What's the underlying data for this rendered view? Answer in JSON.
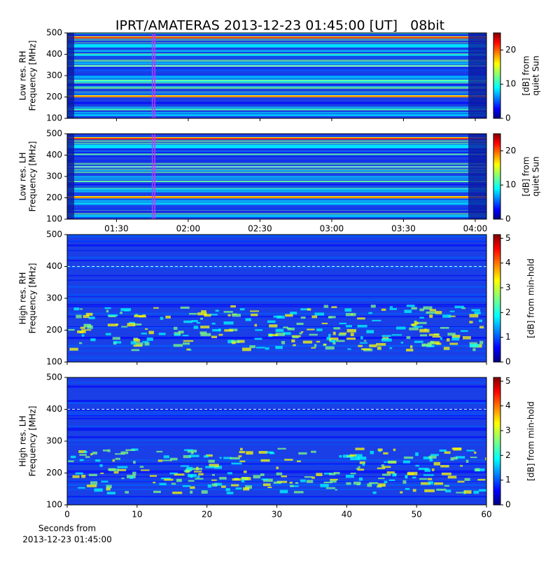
{
  "title": "IPRT/AMATERAS 2013-12-23 01:45:00 [UT]   08bit",
  "chart_data": [
    {
      "type": "spectrogram",
      "ylabel": [
        "Low res. RH",
        "Frequency [MHz]"
      ],
      "ylim": [
        100,
        500
      ],
      "yticks": [
        100,
        200,
        300,
        400,
        500
      ],
      "xlim": [
        69.4,
        244.7
      ],
      "highlight": [
        105,
        106
      ],
      "highlight_color": "#cc33ff",
      "colormap": "jet",
      "colorbar": {
        "label": [
          "[dB] from",
          "quiet Sun"
        ],
        "clim": [
          0,
          25
        ],
        "ticks": [
          0,
          10,
          20
        ]
      }
    },
    {
      "type": "spectrogram",
      "ylabel": [
        "Low res. LH",
        "Frequency [MHz]"
      ],
      "ylim": [
        100,
        500
      ],
      "yticks": [
        100,
        200,
        300,
        400,
        500
      ],
      "xlim": [
        69.4,
        244.7
      ],
      "xticks": [
        {
          "value": 90,
          "label": "01:30"
        },
        {
          "value": 120,
          "label": "02:00"
        },
        {
          "value": 150,
          "label": "02:30"
        },
        {
          "value": 180,
          "label": "03:00"
        },
        {
          "value": 210,
          "label": "03:30"
        },
        {
          "value": 240,
          "label": "04:00"
        }
      ],
      "highlight": [
        105,
        106
      ],
      "highlight_color": "#cc33ff",
      "colormap": "jet",
      "colorbar": {
        "label": [
          "[dB] from",
          "quiet Sun"
        ],
        "clim": [
          0,
          25
        ],
        "ticks": [
          0,
          10,
          20
        ]
      }
    },
    {
      "type": "spectrogram",
      "ylabel": [
        "High res. RH",
        "Frequency [MHz]"
      ],
      "ylim": [
        100,
        500
      ],
      "yticks": [
        100,
        200,
        300,
        400,
        500
      ],
      "xlim": [
        0,
        60
      ],
      "colormap": "jet",
      "colorbar": {
        "label": [
          "[dB] from min-hold"
        ],
        "clim": [
          0,
          5.15
        ],
        "ticks": [
          0,
          1,
          2,
          3,
          4,
          5
        ]
      }
    },
    {
      "type": "spectrogram",
      "ylabel": [
        "High res. LH",
        "Frequency [MHz]"
      ],
      "ylim": [
        100,
        500
      ],
      "yticks": [
        100,
        200,
        300,
        400,
        500
      ],
      "xlim": [
        0,
        60
      ],
      "xticks": [
        0,
        10,
        20,
        30,
        40,
        50,
        60
      ],
      "xlabel": [
        "Seconds from",
        "2013-12-23 01:45:00"
      ],
      "colormap": "jet",
      "colorbar": {
        "label": [
          "[dB] from min-hold"
        ],
        "clim": [
          0,
          5.15
        ],
        "ticks": [
          0,
          1,
          2,
          3,
          4,
          5
        ]
      }
    }
  ]
}
